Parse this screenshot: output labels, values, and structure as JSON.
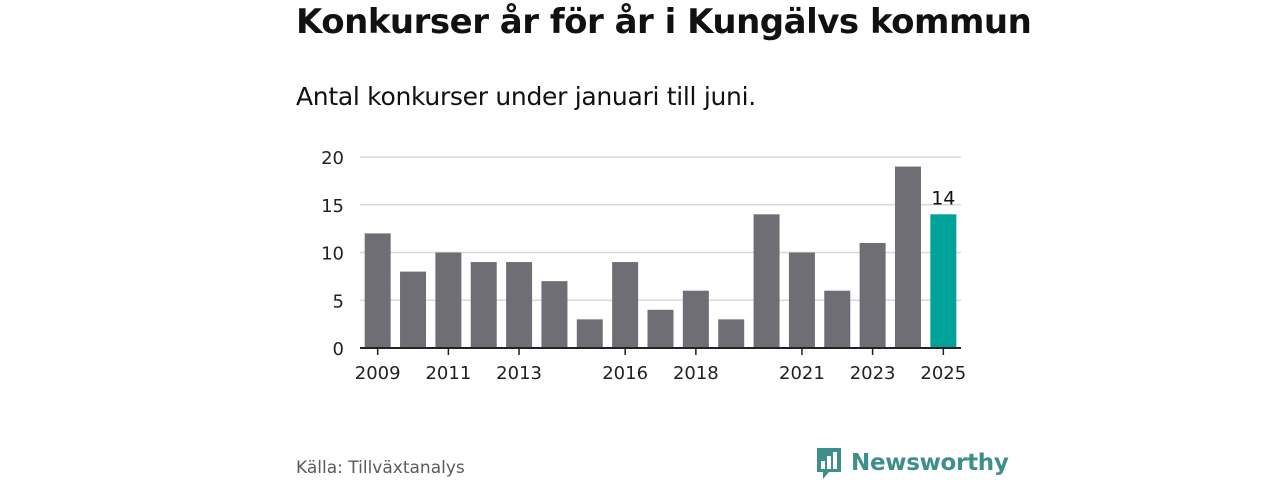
{
  "title": "Konkurser år för år i Kungälvs kommun",
  "subtitle": "Antal konkurser under januari till juni.",
  "source": "Källa: Tillväxtanalys",
  "brand": "Newsworthy",
  "colors": {
    "bar": "#6f6e75",
    "highlight": "#00a39a",
    "brand": "#3e8e8c",
    "grid": "#d9d9d9"
  },
  "chart_data": {
    "type": "bar",
    "categories": [
      "2009",
      "2010",
      "2011",
      "2012",
      "2013",
      "2014",
      "2015",
      "2016",
      "2017",
      "2018",
      "2019",
      "2020",
      "2021",
      "2022",
      "2023",
      "2024",
      "2025"
    ],
    "tick_labels": [
      "2009",
      "",
      "2011",
      "",
      "2013",
      "",
      "",
      "2016",
      "",
      "2018",
      "",
      "",
      "2021",
      "",
      "2023",
      "",
      "2025"
    ],
    "values": [
      12,
      8,
      10,
      9,
      9,
      7,
      3,
      9,
      4,
      6,
      3,
      14,
      10,
      6,
      11,
      19,
      14
    ],
    "highlight_index": 16,
    "highlight_label": "14",
    "yticks": [
      "0",
      "5",
      "10",
      "15",
      "20"
    ],
    "ylim": [
      0,
      20
    ],
    "grid": true
  }
}
